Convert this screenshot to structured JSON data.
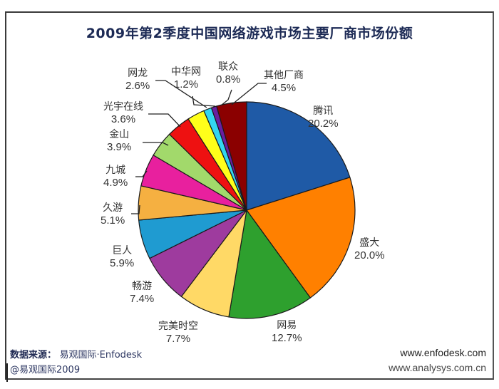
{
  "chart_data": {
    "type": "pie",
    "title": "2009年第2季度中国网络游戏市场主要厂商市场份额",
    "start_angle": "12 o'clock",
    "direction": "clockwise",
    "unit": "%",
    "slices": [
      {
        "label": "腾讯",
        "value": 20.2,
        "pct_text": "20.2%",
        "color": "#1f5aa6"
      },
      {
        "label": "盛大",
        "value": 20.0,
        "pct_text": "20.0%",
        "color": "#ff8000"
      },
      {
        "label": "网易",
        "value": 12.7,
        "pct_text": "12.7%",
        "color": "#2ea02e"
      },
      {
        "label": "完美时空",
        "value": 7.7,
        "pct_text": "7.7%",
        "color": "#ffd966"
      },
      {
        "label": "畅游",
        "value": 7.4,
        "pct_text": "7.4%",
        "color": "#9e3b9e"
      },
      {
        "label": "巨人",
        "value": 5.9,
        "pct_text": "5.9%",
        "color": "#1f9bd1"
      },
      {
        "label": "久游",
        "value": 5.1,
        "pct_text": "5.1%",
        "color": "#f5b041"
      },
      {
        "label": "九城",
        "value": 4.9,
        "pct_text": "4.9%",
        "color": "#e8209e"
      },
      {
        "label": "金山",
        "value": 3.9,
        "pct_text": "3.9%",
        "color": "#a2d96b"
      },
      {
        "label": "光宇在线",
        "value": 3.6,
        "pct_text": "3.6%",
        "color": "#ee1111"
      },
      {
        "label": "网龙",
        "value": 2.6,
        "pct_text": "2.6%",
        "color": "#ffff1a"
      },
      {
        "label": "中华网",
        "value": 1.2,
        "pct_text": "1.2%",
        "color": "#33d6f0"
      },
      {
        "label": "联众",
        "value": 0.8,
        "pct_text": "0.8%",
        "color": "#6a1fa0"
      },
      {
        "label": "其他厂商",
        "value": 4.5,
        "pct_text": "4.5%",
        "color": "#8b0000"
      }
    ],
    "legend": "none (leader-line labels)"
  },
  "header": {
    "title": "2009年第2季度中国网络游戏市场主要厂商市场份额"
  },
  "footer": {
    "source_label": "数据来源：",
    "source_value": "易观国际·Enfodesk",
    "copyright": "@易观国际2009",
    "url_1": "www.enfodesk.com",
    "url_2": "www.analysys.com.cn"
  },
  "colors": {
    "title": "#1c2a55",
    "frame": "#3a3a3a",
    "label_text": "#333333"
  }
}
